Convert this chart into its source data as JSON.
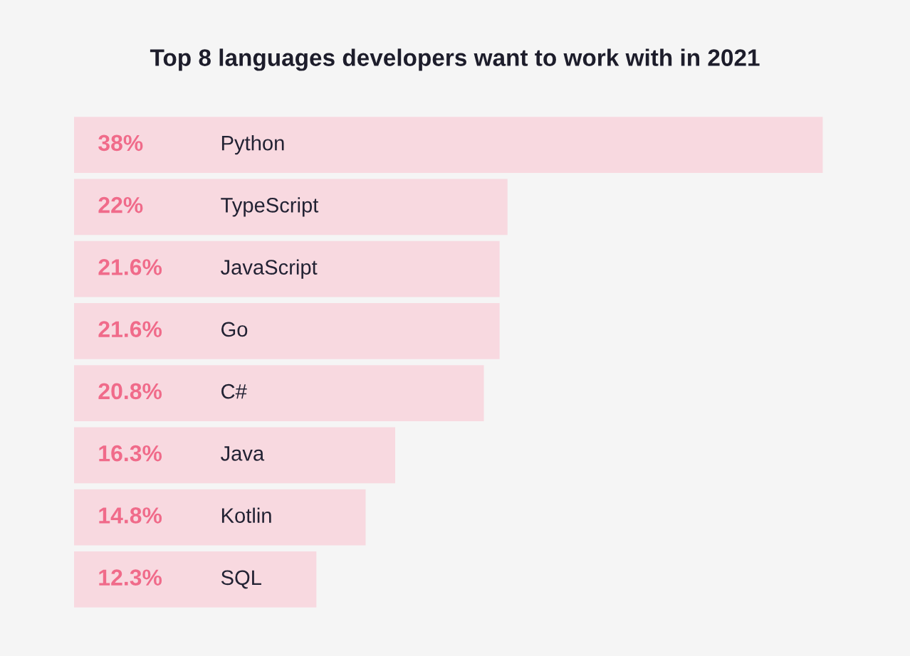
{
  "chart_data": {
    "type": "bar",
    "orientation": "horizontal",
    "title": "Top 8 languages developers want to work with in 2021",
    "categories": [
      "Python",
      "TypeScript",
      "JavaScript",
      "Go",
      "C#",
      "Java",
      "Kotlin",
      "SQL"
    ],
    "values": [
      38,
      22,
      21.6,
      21.6,
      20.8,
      16.3,
      14.8,
      12.3
    ],
    "value_labels": [
      "38%",
      "22%",
      "21.6%",
      "21.6%",
      "20.8%",
      "16.3%",
      "14.8%",
      "12.3%"
    ],
    "color": "#f8d9e0"
  }
}
